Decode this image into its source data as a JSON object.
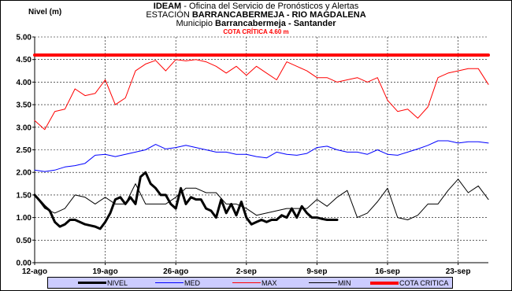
{
  "header": {
    "line1_bold": "IDEAM",
    "line1_rest": " - Oficina del Servicio de Pronósticos y Alertas",
    "line2_prefix": "ESTACIÓN ",
    "line2_bold": "BARRANCABERMEJA - RIO MAGDALENA",
    "line3_prefix": "Municipio ",
    "line3_bold": "Barrancabermeja - Santander",
    "line4": "COTA CRÍTICA  4.60 m"
  },
  "chart_data": {
    "type": "line",
    "ylabel": "Nivel (m)",
    "ylim": [
      0,
      5
    ],
    "yticks": [
      "0.00",
      "0.50",
      "1.00",
      "1.50",
      "2.00",
      "2.50",
      "3.00",
      "3.50",
      "4.00",
      "4.50",
      "5.00"
    ],
    "x_domain": [
      0,
      45
    ],
    "x_ticks": [
      {
        "x": 0,
        "label": "12-ago"
      },
      {
        "x": 7,
        "label": "19-ago"
      },
      {
        "x": 14,
        "label": "26-ago"
      },
      {
        "x": 21,
        "label": "2-sep"
      },
      {
        "x": 28,
        "label": "9-sep"
      },
      {
        "x": 35,
        "label": "16-sep"
      },
      {
        "x": 42,
        "label": "23-sep"
      }
    ],
    "grid": true,
    "legend_position": "bottom",
    "series": [
      {
        "name": "MAX",
        "color": "#ff0000",
        "width": 1,
        "x": [
          0,
          1,
          2,
          3,
          4,
          5,
          6,
          7,
          8,
          9,
          10,
          11,
          12,
          13,
          14,
          15,
          16,
          17,
          18,
          19,
          20,
          21,
          22,
          23,
          24,
          25,
          26,
          27,
          28,
          29,
          30,
          31,
          32,
          33,
          34,
          35,
          36,
          37,
          38,
          39,
          40,
          41,
          42,
          43,
          44,
          45
        ],
        "y": [
          3.15,
          2.95,
          3.35,
          3.4,
          3.85,
          3.7,
          3.75,
          4.05,
          3.5,
          3.65,
          4.25,
          4.4,
          4.48,
          4.25,
          4.5,
          4.47,
          4.5,
          4.45,
          4.35,
          4.2,
          4.35,
          4.15,
          4.35,
          4.2,
          4.05,
          4.45,
          4.35,
          4.25,
          4.1,
          4.1,
          4.0,
          4.05,
          4.1,
          4.0,
          4.1,
          3.6,
          3.35,
          3.4,
          3.2,
          3.45,
          4.1,
          4.2,
          4.25,
          4.3,
          4.3,
          3.95
        ]
      },
      {
        "name": "MED",
        "color": "#0000ff",
        "width": 1,
        "x": [
          0,
          1,
          2,
          3,
          4,
          5,
          6,
          7,
          8,
          9,
          10,
          11,
          12,
          13,
          14,
          15,
          16,
          17,
          18,
          19,
          20,
          21,
          22,
          23,
          24,
          25,
          26,
          27,
          28,
          29,
          30,
          31,
          32,
          33,
          34,
          35,
          36,
          37,
          38,
          39,
          40,
          41,
          42,
          43,
          44,
          45
        ],
        "y": [
          2.05,
          2.02,
          2.05,
          2.12,
          2.15,
          2.2,
          2.38,
          2.4,
          2.35,
          2.4,
          2.45,
          2.5,
          2.62,
          2.52,
          2.55,
          2.6,
          2.55,
          2.5,
          2.45,
          2.45,
          2.4,
          2.4,
          2.35,
          2.32,
          2.45,
          2.4,
          2.38,
          2.42,
          2.55,
          2.58,
          2.5,
          2.45,
          2.45,
          2.4,
          2.5,
          2.4,
          2.38,
          2.45,
          2.52,
          2.6,
          2.7,
          2.7,
          2.65,
          2.68,
          2.68,
          2.65
        ]
      },
      {
        "name": "MIN",
        "color": "#000000",
        "width": 1,
        "x": [
          0,
          1,
          2,
          3,
          4,
          5,
          6,
          7,
          8,
          9,
          10,
          11,
          12,
          13,
          14,
          15,
          16,
          17,
          18,
          19,
          20,
          21,
          22,
          23,
          24,
          25,
          26,
          27,
          28,
          29,
          30,
          31,
          32,
          33,
          34,
          35,
          36,
          37,
          38,
          39,
          40,
          41,
          42,
          43,
          44,
          45
        ],
        "y": [
          1.5,
          1.2,
          1.1,
          1.2,
          1.5,
          1.45,
          1.3,
          1.45,
          1.3,
          1.3,
          1.75,
          1.3,
          1.3,
          1.3,
          1.45,
          1.65,
          1.65,
          1.55,
          1.55,
          1.3,
          1.3,
          1.2,
          1.05,
          1.1,
          1.15,
          1.2,
          1.2,
          1.2,
          1.4,
          1.25,
          1.45,
          1.6,
          1.0,
          1.1,
          1.35,
          1.65,
          1.0,
          0.95,
          1.05,
          1.3,
          1.3,
          1.6,
          1.85,
          1.55,
          1.7,
          1.4
        ]
      },
      {
        "name": "NIVEL",
        "color": "#000000",
        "width": 3,
        "x": [
          0,
          1,
          1.5,
          2,
          2.5,
          3,
          3.5,
          4,
          5,
          6,
          6.5,
          7,
          7.5,
          8,
          8.5,
          9,
          9.5,
          10,
          10.5,
          11,
          11.5,
          12,
          12.5,
          13,
          13.5,
          14,
          14.5,
          15,
          15.5,
          16,
          16.5,
          17,
          17.5,
          18,
          18.5,
          19,
          19.5,
          20,
          20.5,
          21,
          21.5,
          22,
          22.5,
          23,
          23.5,
          24,
          24.5,
          25,
          25.5,
          26,
          26.5,
          27,
          27.5,
          28,
          28.5,
          29,
          29.5,
          30
        ],
        "y": [
          1.5,
          1.25,
          1.15,
          0.9,
          0.8,
          0.85,
          0.95,
          0.95,
          0.85,
          0.8,
          0.75,
          0.9,
          1.1,
          1.4,
          1.45,
          1.3,
          1.45,
          1.3,
          1.9,
          2.0,
          1.75,
          1.65,
          1.5,
          1.5,
          1.3,
          1.2,
          1.65,
          1.3,
          1.45,
          1.4,
          1.4,
          1.2,
          1.15,
          1.0,
          1.4,
          1.1,
          1.3,
          1.05,
          1.35,
          1.0,
          0.85,
          0.9,
          0.95,
          0.9,
          0.95,
          0.95,
          1.05,
          1.0,
          1.2,
          1.0,
          1.25,
          1.1,
          1.0,
          1.0,
          0.97,
          0.95,
          0.95,
          0.95
        ]
      },
      {
        "name": "COTA CRITICA",
        "color": "#ff0000",
        "width": 4,
        "x": [
          0,
          45
        ],
        "y": [
          4.6,
          4.6
        ]
      }
    ]
  }
}
